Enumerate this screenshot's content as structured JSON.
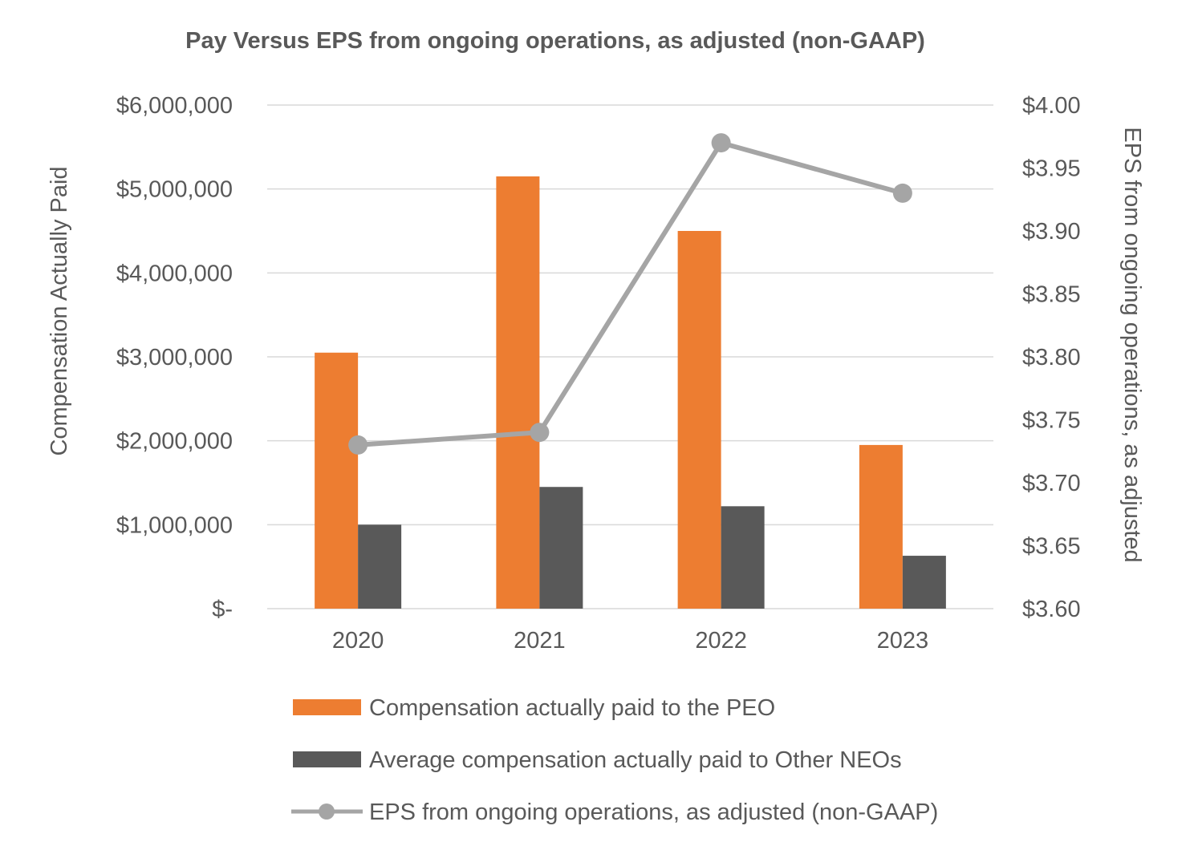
{
  "chart_data": {
    "type": "bar",
    "title": "Pay Versus EPS from ongoing operations, as adjusted (non-GAAP)",
    "categories": [
      "2020",
      "2021",
      "2022",
      "2023"
    ],
    "ylabel": "Compensation Actually Paid",
    "y2label": "EPS from ongoing operations, as adjusted",
    "ylim": [
      0,
      6000000
    ],
    "y2lim": [
      3.6,
      4.0
    ],
    "yticks": [
      "$-",
      "$1,000,000",
      "$2,000,000",
      "$3,000,000",
      "$4,000,000",
      "$5,000,000",
      "$6,000,000"
    ],
    "y2ticks": [
      "$3.60",
      "$3.65",
      "$3.70",
      "$3.75",
      "$3.80",
      "$3.85",
      "$3.90",
      "$3.95",
      "$4.00"
    ],
    "grid": true,
    "legend_position": "bottom",
    "series": [
      {
        "name": "Compensation actually paid to the PEO",
        "kind": "bar",
        "axis": "left",
        "color": "#ED7D31",
        "values": [
          3050000,
          5150000,
          4500000,
          1950000
        ]
      },
      {
        "name": "Average compensation actually paid to Other NEOs",
        "kind": "bar",
        "axis": "left",
        "color": "#595959",
        "values": [
          1000000,
          1450000,
          1220000,
          630000
        ]
      },
      {
        "name": "EPS from ongoing operations, as adjusted (non-GAAP)",
        "kind": "line",
        "axis": "right",
        "color": "#A5A5A5",
        "values": [
          3.73,
          3.74,
          3.97,
          3.93
        ]
      }
    ]
  }
}
